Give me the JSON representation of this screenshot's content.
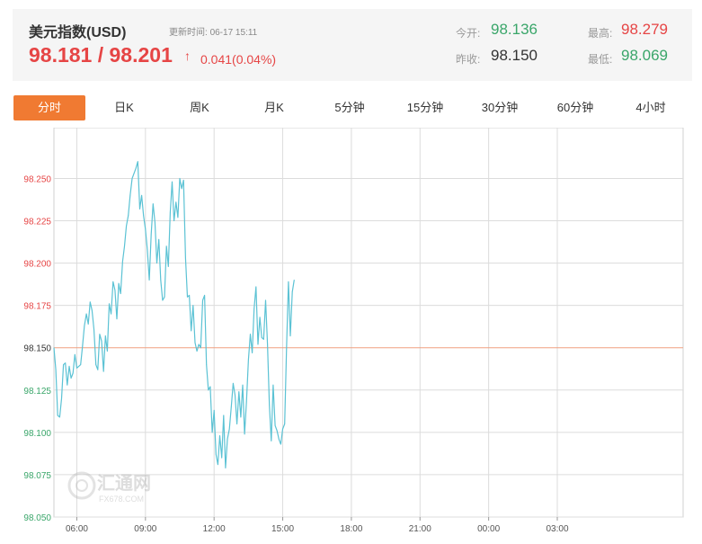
{
  "quote": {
    "title": "美元指数(USD)",
    "updated_label": "更新时间:",
    "updated_time": "06-17 15:11",
    "price": "98.181 / 98.201",
    "arrow": "↑",
    "change": "0.041(0.04%)",
    "open_label": "今开:",
    "open_value": "98.136",
    "high_label": "最高:",
    "high_value": "98.279",
    "prev_close_label": "昨收:",
    "prev_close_value": "98.150",
    "low_label": "最低:",
    "low_value": "98.069"
  },
  "tabs": [
    "分时",
    "日K",
    "周K",
    "月K",
    "5分钟",
    "15分钟",
    "30分钟",
    "60分钟",
    "4小时"
  ],
  "active_tab": 0,
  "watermark": {
    "name": "汇通网",
    "url": "FX678.COM"
  },
  "colors": {
    "up": "#e64545",
    "down": "#3aa66a",
    "line": "#5bc2d4",
    "ref": "#f0a080",
    "active_tab": "#f07a32"
  },
  "chart_data": {
    "type": "line",
    "title": "",
    "xlabel": "",
    "ylabel": "",
    "x_ticks": [
      "06:00",
      "09:00",
      "12:00",
      "15:00",
      "18:00",
      "21:00",
      "00:00",
      "03:00"
    ],
    "x_range": [
      "05:00",
      "08:30 (+1 day)"
    ],
    "y_ticks": [
      98.05,
      98.075,
      98.1,
      98.125,
      98.15,
      98.175,
      98.2,
      98.225,
      98.25
    ],
    "y_tick_labels": [
      "98.050",
      "98.075",
      "98.100",
      "98.125",
      "98.150",
      "98.175",
      "98.200",
      "98.225",
      "98.250"
    ],
    "ylim": [
      98.05,
      98.28
    ],
    "reference_line": 98.15,
    "grid": true,
    "series": [
      {
        "values": [
          [
            "05:00",
            98.15
          ],
          [
            "05:05",
            98.137
          ],
          [
            "05:10",
            98.11
          ],
          [
            "05:15",
            98.109
          ],
          [
            "05:20",
            98.12
          ],
          [
            "05:25",
            98.14
          ],
          [
            "05:30",
            98.141
          ],
          [
            "05:35",
            98.128
          ],
          [
            "05:40",
            98.139
          ],
          [
            "05:45",
            98.132
          ],
          [
            "05:50",
            98.135
          ],
          [
            "05:55",
            98.146
          ],
          [
            "06:00",
            98.138
          ],
          [
            "06:05",
            98.139
          ],
          [
            "06:10",
            98.14
          ],
          [
            "06:15",
            98.151
          ],
          [
            "06:20",
            98.163
          ],
          [
            "06:25",
            98.17
          ],
          [
            "06:30",
            98.164
          ],
          [
            "06:35",
            98.177
          ],
          [
            "06:40",
            98.172
          ],
          [
            "06:45",
            98.161
          ],
          [
            "06:50",
            98.14
          ],
          [
            "06:55",
            98.137
          ],
          [
            "07:00",
            98.158
          ],
          [
            "07:05",
            98.154
          ],
          [
            "07:10",
            98.136
          ],
          [
            "07:15",
            98.157
          ],
          [
            "07:20",
            98.148
          ],
          [
            "07:25",
            98.176
          ],
          [
            "07:30",
            98.17
          ],
          [
            "07:35",
            98.189
          ],
          [
            "07:40",
            98.184
          ],
          [
            "07:45",
            98.167
          ],
          [
            "07:50",
            98.188
          ],
          [
            "07:55",
            98.182
          ],
          [
            "08:00",
            98.201
          ],
          [
            "08:05",
            98.21
          ],
          [
            "08:10",
            98.222
          ],
          [
            "08:15",
            98.228
          ],
          [
            "08:20",
            98.24
          ],
          [
            "08:25",
            98.25
          ],
          [
            "08:30",
            98.253
          ],
          [
            "08:35",
            98.256
          ],
          [
            "08:40",
            98.26
          ],
          [
            "08:45",
            98.232
          ],
          [
            "08:50",
            98.24
          ],
          [
            "08:55",
            98.228
          ],
          [
            "09:00",
            98.22
          ],
          [
            "09:05",
            98.208
          ],
          [
            "09:10",
            98.19
          ],
          [
            "09:15",
            98.217
          ],
          [
            "09:20",
            98.235
          ],
          [
            "09:25",
            98.224
          ],
          [
            "09:30",
            98.2
          ],
          [
            "09:35",
            98.214
          ],
          [
            "09:40",
            98.19
          ],
          [
            "09:45",
            98.178
          ],
          [
            "09:50",
            98.18
          ],
          [
            "09:55",
            98.21
          ],
          [
            "10:00",
            98.198
          ],
          [
            "10:05",
            98.23
          ],
          [
            "10:10",
            98.248
          ],
          [
            "10:15",
            98.225
          ],
          [
            "10:20",
            98.236
          ],
          [
            "10:25",
            98.227
          ],
          [
            "10:30",
            98.25
          ],
          [
            "10:35",
            98.244
          ],
          [
            "10:40",
            98.249
          ],
          [
            "10:45",
            98.203
          ],
          [
            "10:50",
            98.18
          ],
          [
            "10:55",
            98.181
          ],
          [
            "11:00",
            98.16
          ],
          [
            "11:05",
            98.175
          ],
          [
            "11:10",
            98.153
          ],
          [
            "11:15",
            98.148
          ],
          [
            "11:20",
            98.152
          ],
          [
            "11:25",
            98.15
          ],
          [
            "11:30",
            98.178
          ],
          [
            "11:35",
            98.181
          ],
          [
            "11:40",
            98.14
          ],
          [
            "11:45",
            98.125
          ],
          [
            "11:50",
            98.127
          ],
          [
            "11:55",
            98.1
          ],
          [
            "12:00",
            98.113
          ],
          [
            "12:05",
            98.087
          ],
          [
            "12:10",
            98.081
          ],
          [
            "12:15",
            98.098
          ],
          [
            "12:20",
            98.085
          ],
          [
            "12:25",
            98.11
          ],
          [
            "12:30",
            98.079
          ],
          [
            "12:35",
            98.096
          ],
          [
            "12:40",
            98.102
          ],
          [
            "12:45",
            98.115
          ],
          [
            "12:50",
            98.129
          ],
          [
            "12:55",
            98.122
          ],
          [
            "13:00",
            98.105
          ],
          [
            "13:05",
            98.124
          ],
          [
            "13:10",
            98.109
          ],
          [
            "13:15",
            98.128
          ],
          [
            "13:20",
            98.099
          ],
          [
            "13:25",
            98.118
          ],
          [
            "13:30",
            98.143
          ],
          [
            "13:35",
            98.158
          ],
          [
            "13:40",
            98.147
          ],
          [
            "13:45",
            98.173
          ],
          [
            "13:50",
            98.186
          ],
          [
            "13:55",
            98.152
          ],
          [
            "14:00",
            98.168
          ],
          [
            "14:05",
            98.156
          ],
          [
            "14:10",
            98.155
          ],
          [
            "14:15",
            98.178
          ],
          [
            "14:20",
            98.152
          ],
          [
            "14:25",
            98.116
          ],
          [
            "14:30",
            98.095
          ],
          [
            "14:35",
            98.128
          ],
          [
            "14:40",
            98.104
          ],
          [
            "14:45",
            98.101
          ],
          [
            "14:50",
            98.096
          ],
          [
            "14:55",
            98.093
          ],
          [
            "15:00",
            98.102
          ],
          [
            "15:05",
            98.105
          ],
          [
            "15:10",
            98.15
          ],
          [
            "15:15",
            98.189
          ],
          [
            "15:20",
            98.157
          ],
          [
            "15:25",
            98.183
          ],
          [
            "15:30",
            98.19
          ]
        ]
      }
    ]
  }
}
